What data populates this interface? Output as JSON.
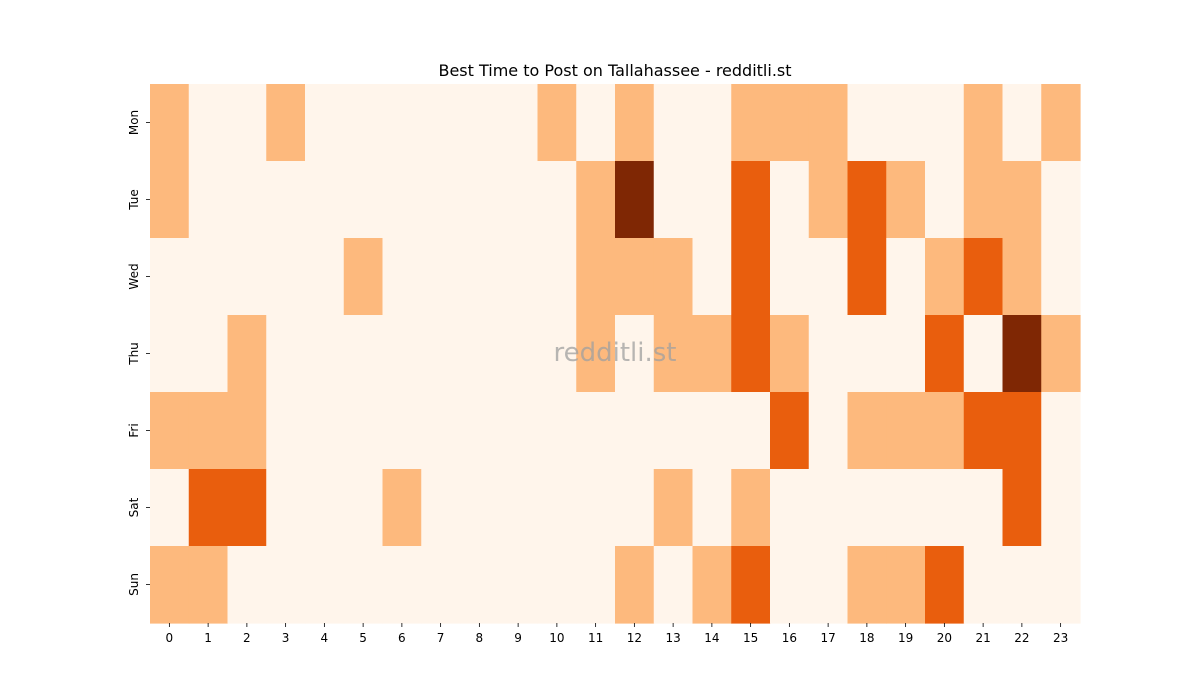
{
  "chart_data": {
    "type": "heatmap",
    "title": "Best Time to Post on Tallahassee - redditli.st",
    "watermark": "redditli.st",
    "xlabel": "",
    "ylabel": "",
    "x_categories": [
      "0",
      "1",
      "2",
      "3",
      "4",
      "5",
      "6",
      "7",
      "8",
      "9",
      "10",
      "11",
      "12",
      "13",
      "14",
      "15",
      "16",
      "17",
      "18",
      "19",
      "20",
      "21",
      "22",
      "23"
    ],
    "y_categories": [
      "Mon",
      "Tue",
      "Wed",
      "Thu",
      "Fri",
      "Sat",
      "Sun"
    ],
    "levels": [
      0,
      1,
      2,
      3
    ],
    "colors": [
      "#fff5eb",
      "#fdb97d",
      "#e95e0d",
      "#7f2704"
    ],
    "values": [
      [
        1,
        0,
        0,
        1,
        0,
        0,
        0,
        0,
        0,
        0,
        1,
        0,
        1,
        0,
        0,
        1,
        1,
        1,
        0,
        0,
        0,
        1,
        0,
        1
      ],
      [
        1,
        0,
        0,
        0,
        0,
        0,
        0,
        0,
        0,
        0,
        0,
        1,
        3,
        0,
        0,
        2,
        0,
        1,
        2,
        1,
        0,
        1,
        1,
        0
      ],
      [
        0,
        0,
        0,
        0,
        0,
        1,
        0,
        0,
        0,
        0,
        0,
        1,
        1,
        1,
        0,
        2,
        0,
        0,
        2,
        0,
        1,
        2,
        1,
        0
      ],
      [
        0,
        0,
        1,
        0,
        0,
        0,
        0,
        0,
        0,
        0,
        0,
        1,
        0,
        1,
        1,
        2,
        1,
        0,
        0,
        0,
        2,
        0,
        3,
        1
      ],
      [
        1,
        1,
        1,
        0,
        0,
        0,
        0,
        0,
        0,
        0,
        0,
        0,
        0,
        0,
        0,
        0,
        2,
        0,
        1,
        1,
        1,
        2,
        2,
        0
      ],
      [
        0,
        2,
        2,
        0,
        0,
        0,
        1,
        0,
        0,
        0,
        0,
        0,
        0,
        1,
        0,
        1,
        0,
        0,
        0,
        0,
        0,
        0,
        2,
        0
      ],
      [
        1,
        1,
        0,
        0,
        0,
        0,
        0,
        0,
        0,
        0,
        0,
        0,
        1,
        0,
        1,
        2,
        0,
        0,
        1,
        1,
        2,
        0,
        0,
        0
      ]
    ]
  }
}
